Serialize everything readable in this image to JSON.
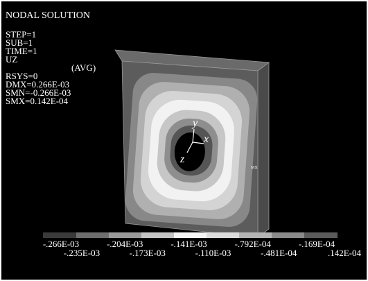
{
  "header": {
    "title": "NODAL SOLUTION"
  },
  "info": {
    "lines": [
      "STEP=1",
      "SUB=1",
      "TIME=1",
      "UZ",
      "RSYS=0",
      "DMX=0.266E-03",
      "SMN=-0.266E-03",
      "SMX=0.142E-04"
    ],
    "avg": "(AVG)"
  },
  "triad": {
    "y": "y",
    "x": "x",
    "z": "z"
  },
  "marker": "MX",
  "contour_labels": [
    "-.266E-03",
    "-.235E-03",
    "-.204E-03",
    "-.173E-03",
    "-.141E-03",
    "-.110E-03",
    "-.792E-04",
    "-.481E-04",
    "-.169E-04",
    ".142E-04"
  ]
}
